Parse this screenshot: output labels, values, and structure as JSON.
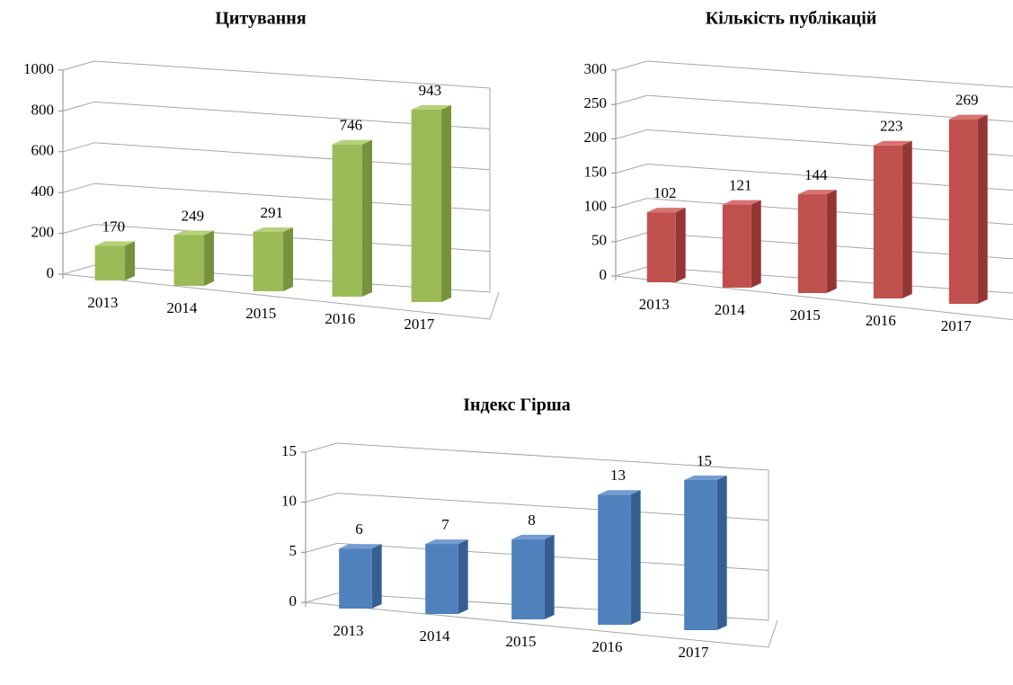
{
  "chart_data": [
    {
      "type": "bar3d",
      "title": "Цитування",
      "categories": [
        "2013",
        "2014",
        "2015",
        "2016",
        "2017"
      ],
      "values": [
        170,
        249,
        291,
        746,
        943
      ],
      "color": "#9bbb59",
      "side_color": "#76923c",
      "top_color": "#b6d27a",
      "ylim": [
        0,
        1000
      ],
      "yticks": [
        0,
        200,
        400,
        600,
        800,
        1000
      ],
      "grid": true
    },
    {
      "type": "bar3d",
      "title": "Кількість публікацій",
      "categories": [
        "2013",
        "2014",
        "2015",
        "2016",
        "2017"
      ],
      "values": [
        102,
        121,
        144,
        223,
        269
      ],
      "color": "#c0504d",
      "side_color": "#943634",
      "top_color": "#d77370",
      "ylim": [
        0,
        300
      ],
      "yticks": [
        0,
        50,
        100,
        150,
        200,
        250,
        300
      ],
      "grid": true
    },
    {
      "type": "bar3d",
      "title": "Індекс Гірша",
      "categories": [
        "2013",
        "2014",
        "2015",
        "2016",
        "2017"
      ],
      "values": [
        6,
        7,
        8,
        13,
        15
      ],
      "color": "#4f81bd",
      "side_color": "#365f91",
      "top_color": "#739cd0",
      "ylim": [
        0,
        15
      ],
      "yticks": [
        0,
        5,
        10,
        15
      ],
      "grid": true
    }
  ]
}
